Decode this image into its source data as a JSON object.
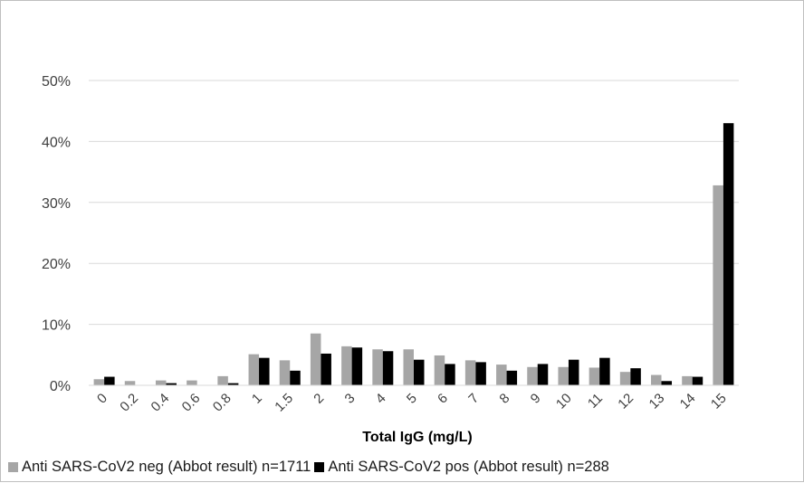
{
  "chart_data": {
    "type": "bar",
    "title": "",
    "xlabel": "Total IgG (mg/L)",
    "ylabel": "",
    "ylim": [
      0,
      50
    ],
    "y_ticks": [
      "0%",
      "10%",
      "20%",
      "30%",
      "40%",
      "50%"
    ],
    "y_tick_values": [
      0,
      10,
      20,
      30,
      40,
      50
    ],
    "grid": true,
    "legend_position": "bottom",
    "categories": [
      "0",
      "0.2",
      "0.4",
      "0.6",
      "0.8",
      "1",
      "1.5",
      "2",
      "3",
      "4",
      "5",
      "6",
      "7",
      "8",
      "9",
      "10",
      "11",
      "12",
      "13",
      "14",
      "15"
    ],
    "series": [
      {
        "name": "Anti SARS-CoV2 neg (Abbot result) n=1711",
        "color": "#a6a6a6",
        "values": [
          1.0,
          0.7,
          0.8,
          0.8,
          1.5,
          5.1,
          4.1,
          8.5,
          6.4,
          5.9,
          5.9,
          4.9,
          4.1,
          3.4,
          3.0,
          3.0,
          2.9,
          2.2,
          1.7,
          1.5,
          32.8
        ]
      },
      {
        "name": "Anti SARS-CoV2 pos (Abbot result) n=288",
        "color": "#000000",
        "values": [
          1.4,
          0.0,
          0.35,
          0.0,
          0.35,
          4.5,
          2.4,
          5.2,
          6.2,
          5.6,
          4.2,
          3.5,
          3.8,
          2.4,
          3.5,
          4.2,
          4.5,
          2.8,
          0.7,
          1.4,
          43.0
        ]
      }
    ]
  }
}
